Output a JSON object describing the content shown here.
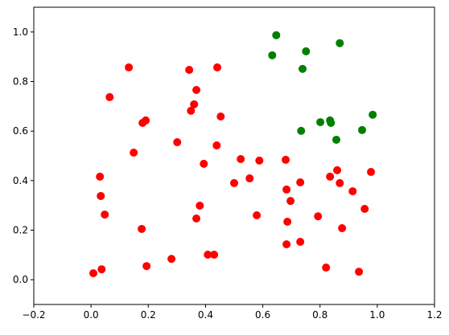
{
  "chart_data": {
    "type": "scatter",
    "xlim": [
      -0.2,
      1.2
    ],
    "ylim": [
      -0.1,
      1.1
    ],
    "xticks": [
      {
        "value": -0.2,
        "label": "−0.2"
      },
      {
        "value": 0,
        "label": "0.0"
      },
      0.2,
      0.4,
      0.6,
      0.8,
      {
        "value": 1,
        "label": "1.0"
      },
      1.2
    ],
    "yticks": [
      {
        "value": 0,
        "label": "0.0"
      },
      0.2,
      0.4,
      0.6,
      0.8,
      {
        "value": 1,
        "label": "1.0"
      }
    ],
    "series": [
      {
        "color": "#ff0000",
        "x": [
          0.132,
          0.065,
          0.343,
          0.441,
          0.368,
          0.36,
          0.349,
          0.191,
          0.18,
          0.453,
          0.301,
          0.149,
          0.439,
          0.394,
          0.523,
          0.588,
          0.68,
          0.031,
          0.554,
          0.5,
          0.731,
          0.835,
          0.86,
          0.869,
          0.978,
          0.683,
          0.914,
          0.034,
          0.38,
          0.697,
          0.048,
          0.368,
          0.579,
          0.686,
          0.793,
          0.956,
          0.177,
          0.877,
          0.683,
          0.731,
          0.408,
          0.43,
          0.281,
          0.194,
          0.037,
          0.821,
          0.008,
          0.936
        ],
        "values": [
          0.857,
          0.737,
          0.847,
          0.857,
          0.766,
          0.708,
          0.682,
          0.643,
          0.633,
          0.659,
          0.555,
          0.513,
          0.542,
          0.468,
          0.487,
          0.481,
          0.484,
          0.416,
          0.409,
          0.39,
          0.393,
          0.416,
          0.442,
          0.39,
          0.435,
          0.364,
          0.357,
          0.338,
          0.299,
          0.318,
          0.263,
          0.247,
          0.26,
          0.234,
          0.256,
          0.286,
          0.205,
          0.208,
          0.143,
          0.153,
          0.101,
          0.101,
          0.084,
          0.055,
          0.042,
          0.049,
          0.026,
          0.032
        ]
      },
      {
        "color": "#008000",
        "x": [
          0.647,
          0.633,
          0.751,
          0.869,
          0.739,
          0.984,
          0.734,
          0.801,
          0.835,
          0.838,
          0.857,
          0.947
        ],
        "values": [
          0.987,
          0.906,
          0.922,
          0.955,
          0.851,
          0.666,
          0.601,
          0.636,
          0.643,
          0.633,
          0.565,
          0.604
        ]
      }
    ]
  }
}
